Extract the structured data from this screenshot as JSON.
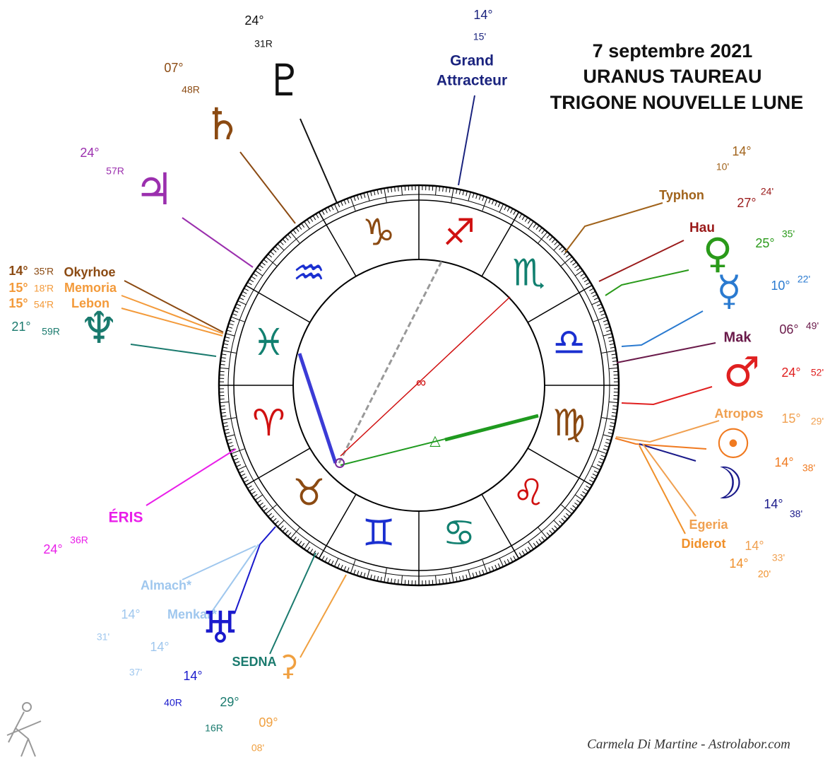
{
  "title": {
    "lines": [
      "7 septembre 2021",
      "URANUS TAUREAU",
      "TRIGONE NOUVELLE LUNE"
    ]
  },
  "signs": [
    "♈︎",
    "♉︎",
    "♊︎",
    "♋︎",
    "♌︎",
    "♍︎",
    "♎︎",
    "♏︎",
    "♐︎",
    "♑︎",
    "♒︎",
    "♓︎"
  ],
  "aspects": [
    "∞",
    "△"
  ],
  "bodies": [
    {
      "label": "♇",
      "degree": "24°",
      "minutes": "31R"
    },
    {
      "label": "♄",
      "degree": "07°",
      "minutes": "48R"
    },
    {
      "label": "♃",
      "degree": "24°",
      "minutes": "57R"
    },
    {
      "label": "Okyrhoe",
      "degree": "14°",
      "minutes": "35'R"
    },
    {
      "label": "Memoria",
      "degree": "15°",
      "minutes": "18'R"
    },
    {
      "label": "Lebon",
      "degree": "15°",
      "minutes": "54'R"
    },
    {
      "label": "♆",
      "degree": "21°",
      "minutes": "59R"
    },
    {
      "label": "ÉRIS",
      "degree": "24°",
      "minutes": "36R"
    },
    {
      "label": "Almach*",
      "degree": "14°",
      "minutes": "31'"
    },
    {
      "label": "Menkar*",
      "degree": "14°",
      "minutes": "37'"
    },
    {
      "label": "♅",
      "degree": "14°",
      "minutes": "40R"
    },
    {
      "label": "SEDNA",
      "degree": "29°",
      "minutes": "16R"
    },
    {
      "label": "⚳",
      "degree": "09°",
      "minutes": "08'"
    },
    {
      "label": [
        "Grand",
        "Attracteur"
      ],
      "degree": "14°",
      "minutes": "15'"
    },
    {
      "label": "Typhon",
      "degree": "14°",
      "minutes": "10'"
    },
    {
      "label": "Hau",
      "degree": "27°",
      "minutes": "24'"
    },
    {
      "label": "♀",
      "degree": "25°",
      "minutes": "35'"
    },
    {
      "label": "☿",
      "degree": "10°",
      "minutes": "22'"
    },
    {
      "label": "Mak",
      "degree": "06°",
      "minutes": "49'"
    },
    {
      "label": "♂",
      "degree": "24°",
      "minutes": "52'"
    },
    {
      "label": "Atropos",
      "degree": "15°",
      "minutes": "29'"
    },
    {
      "label": "☉",
      "degree": "14°",
      "minutes": "38'"
    },
    {
      "label": "☽",
      "degree": "14°",
      "minutes": "38'"
    },
    {
      "label": "Egeria",
      "degree": "14°",
      "minutes": "33'"
    },
    {
      "label": "Diderot",
      "degree": "14°",
      "minutes": "20'"
    }
  ],
  "credit": "Carmela Di Martine - Astrolabor.com"
}
